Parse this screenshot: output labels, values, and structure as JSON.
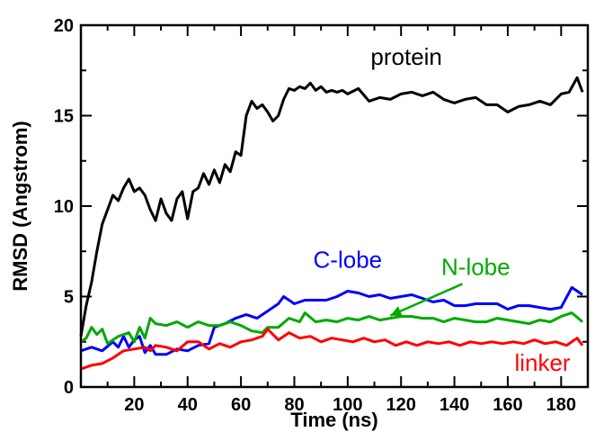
{
  "chart_data": {
    "type": "line",
    "title": "",
    "xlabel": "Time (ns)",
    "ylabel": "RMSD (Angstrom)",
    "xlim": [
      0,
      190
    ],
    "ylim": [
      0,
      20
    ],
    "x_ticks": [
      20,
      40,
      60,
      80,
      100,
      120,
      140,
      160,
      180
    ],
    "y_ticks": [
      0,
      5,
      10,
      15,
      20
    ],
    "grid": false,
    "legend": "none",
    "series": [
      {
        "name": "protein",
        "color": "#000000",
        "points": [
          [
            0,
            2.8
          ],
          [
            2,
            4.5
          ],
          [
            4,
            5.8
          ],
          [
            6,
            7.5
          ],
          [
            8,
            9.0
          ],
          [
            10,
            9.8
          ],
          [
            12,
            10.6
          ],
          [
            14,
            10.3
          ],
          [
            16,
            11.0
          ],
          [
            18,
            11.5
          ],
          [
            20,
            10.8
          ],
          [
            22,
            11.0
          ],
          [
            24,
            10.6
          ],
          [
            26,
            9.8
          ],
          [
            28,
            9.2
          ],
          [
            30,
            10.4
          ],
          [
            32,
            9.6
          ],
          [
            34,
            9.2
          ],
          [
            36,
            10.4
          ],
          [
            38,
            10.8
          ],
          [
            40,
            9.3
          ],
          [
            42,
            10.8
          ],
          [
            44,
            11.0
          ],
          [
            46,
            11.8
          ],
          [
            48,
            11.2
          ],
          [
            50,
            12.0
          ],
          [
            52,
            11.3
          ],
          [
            54,
            12.3
          ],
          [
            56,
            11.9
          ],
          [
            58,
            13.0
          ],
          [
            60,
            12.8
          ],
          [
            62,
            15.0
          ],
          [
            64,
            15.8
          ],
          [
            66,
            15.4
          ],
          [
            68,
            15.6
          ],
          [
            70,
            15.2
          ],
          [
            72,
            14.7
          ],
          [
            74,
            15.0
          ],
          [
            76,
            15.9
          ],
          [
            78,
            16.5
          ],
          [
            80,
            16.4
          ],
          [
            82,
            16.6
          ],
          [
            84,
            16.5
          ],
          [
            86,
            16.8
          ],
          [
            88,
            16.4
          ],
          [
            90,
            16.6
          ],
          [
            92,
            16.3
          ],
          [
            94,
            16.4
          ],
          [
            96,
            16.3
          ],
          [
            98,
            16.4
          ],
          [
            100,
            16.2
          ],
          [
            104,
            16.5
          ],
          [
            108,
            15.8
          ],
          [
            112,
            16.0
          ],
          [
            116,
            15.9
          ],
          [
            120,
            16.2
          ],
          [
            124,
            16.3
          ],
          [
            128,
            16.1
          ],
          [
            132,
            16.3
          ],
          [
            136,
            15.9
          ],
          [
            140,
            15.7
          ],
          [
            144,
            15.9
          ],
          [
            148,
            16.0
          ],
          [
            152,
            15.6
          ],
          [
            156,
            15.6
          ],
          [
            160,
            15.2
          ],
          [
            164,
            15.5
          ],
          [
            168,
            15.6
          ],
          [
            172,
            15.8
          ],
          [
            176,
            15.6
          ],
          [
            180,
            16.2
          ],
          [
            183,
            16.3
          ],
          [
            186,
            17.1
          ],
          [
            188,
            16.3
          ]
        ]
      },
      {
        "name": "C-lobe",
        "color": "#0000ff",
        "points": [
          [
            0,
            2.0
          ],
          [
            4,
            2.2
          ],
          [
            8,
            2.0
          ],
          [
            12,
            2.5
          ],
          [
            14,
            2.2
          ],
          [
            16,
            2.8
          ],
          [
            18,
            2.2
          ],
          [
            20,
            2.6
          ],
          [
            22,
            2.8
          ],
          [
            24,
            1.9
          ],
          [
            26,
            2.3
          ],
          [
            28,
            1.8
          ],
          [
            32,
            1.8
          ],
          [
            36,
            2.1
          ],
          [
            40,
            2.0
          ],
          [
            44,
            2.3
          ],
          [
            48,
            2.4
          ],
          [
            50,
            3.3
          ],
          [
            54,
            3.5
          ],
          [
            58,
            3.8
          ],
          [
            62,
            4.0
          ],
          [
            66,
            3.8
          ],
          [
            70,
            4.2
          ],
          [
            74,
            4.6
          ],
          [
            76,
            5.0
          ],
          [
            80,
            4.6
          ],
          [
            84,
            4.8
          ],
          [
            88,
            4.8
          ],
          [
            92,
            4.8
          ],
          [
            96,
            5.0
          ],
          [
            100,
            5.3
          ],
          [
            104,
            5.2
          ],
          [
            108,
            5.0
          ],
          [
            112,
            5.1
          ],
          [
            116,
            4.9
          ],
          [
            120,
            5.0
          ],
          [
            124,
            5.1
          ],
          [
            128,
            4.9
          ],
          [
            132,
            4.7
          ],
          [
            136,
            4.8
          ],
          [
            140,
            4.5
          ],
          [
            144,
            4.5
          ],
          [
            148,
            4.6
          ],
          [
            152,
            4.6
          ],
          [
            156,
            4.6
          ],
          [
            160,
            4.3
          ],
          [
            164,
            4.5
          ],
          [
            168,
            4.5
          ],
          [
            172,
            4.4
          ],
          [
            176,
            4.3
          ],
          [
            180,
            4.4
          ],
          [
            184,
            5.5
          ],
          [
            188,
            5.1
          ]
        ]
      },
      {
        "name": "N-lobe",
        "color": "#00aa00",
        "points": [
          [
            0,
            2.5
          ],
          [
            2,
            2.7
          ],
          [
            4,
            3.3
          ],
          [
            6,
            2.9
          ],
          [
            8,
            3.2
          ],
          [
            10,
            2.4
          ],
          [
            12,
            2.6
          ],
          [
            14,
            2.8
          ],
          [
            16,
            2.9
          ],
          [
            18,
            3.0
          ],
          [
            20,
            2.5
          ],
          [
            22,
            3.3
          ],
          [
            24,
            2.7
          ],
          [
            26,
            3.8
          ],
          [
            28,
            3.5
          ],
          [
            32,
            3.4
          ],
          [
            36,
            3.6
          ],
          [
            40,
            3.3
          ],
          [
            44,
            3.6
          ],
          [
            48,
            3.4
          ],
          [
            52,
            3.4
          ],
          [
            56,
            3.6
          ],
          [
            60,
            3.4
          ],
          [
            64,
            3.1
          ],
          [
            68,
            3.0
          ],
          [
            70,
            3.3
          ],
          [
            74,
            3.3
          ],
          [
            78,
            3.8
          ],
          [
            82,
            3.6
          ],
          [
            84,
            4.1
          ],
          [
            88,
            3.6
          ],
          [
            92,
            3.7
          ],
          [
            96,
            3.6
          ],
          [
            100,
            3.8
          ],
          [
            104,
            3.7
          ],
          [
            108,
            3.9
          ],
          [
            112,
            3.7
          ],
          [
            116,
            3.8
          ],
          [
            120,
            3.9
          ],
          [
            124,
            3.9
          ],
          [
            128,
            3.8
          ],
          [
            132,
            3.8
          ],
          [
            136,
            3.6
          ],
          [
            140,
            3.8
          ],
          [
            144,
            3.7
          ],
          [
            148,
            3.6
          ],
          [
            152,
            3.6
          ],
          [
            156,
            3.8
          ],
          [
            160,
            3.7
          ],
          [
            164,
            3.6
          ],
          [
            168,
            3.5
          ],
          [
            172,
            3.7
          ],
          [
            176,
            3.6
          ],
          [
            180,
            3.9
          ],
          [
            184,
            4.1
          ],
          [
            188,
            3.6
          ]
        ]
      },
      {
        "name": "linker",
        "color": "#ff0000",
        "points": [
          [
            0,
            1.0
          ],
          [
            4,
            1.2
          ],
          [
            8,
            1.3
          ],
          [
            12,
            1.6
          ],
          [
            16,
            2.0
          ],
          [
            20,
            2.1
          ],
          [
            24,
            2.2
          ],
          [
            26,
            2.0
          ],
          [
            28,
            2.3
          ],
          [
            32,
            2.2
          ],
          [
            36,
            2.0
          ],
          [
            40,
            2.5
          ],
          [
            44,
            2.5
          ],
          [
            48,
            2.1
          ],
          [
            52,
            2.4
          ],
          [
            56,
            2.2
          ],
          [
            60,
            2.5
          ],
          [
            64,
            2.6
          ],
          [
            68,
            2.8
          ],
          [
            70,
            3.2
          ],
          [
            74,
            2.6
          ],
          [
            78,
            3.0
          ],
          [
            82,
            2.7
          ],
          [
            86,
            2.8
          ],
          [
            90,
            2.5
          ],
          [
            94,
            2.7
          ],
          [
            98,
            2.6
          ],
          [
            102,
            2.5
          ],
          [
            106,
            2.7
          ],
          [
            110,
            2.5
          ],
          [
            114,
            2.6
          ],
          [
            118,
            2.3
          ],
          [
            122,
            2.5
          ],
          [
            126,
            2.3
          ],
          [
            130,
            2.5
          ],
          [
            134,
            2.4
          ],
          [
            138,
            2.5
          ],
          [
            142,
            2.3
          ],
          [
            146,
            2.5
          ],
          [
            150,
            2.4
          ],
          [
            154,
            2.5
          ],
          [
            158,
            2.4
          ],
          [
            162,
            2.5
          ],
          [
            166,
            2.4
          ],
          [
            170,
            2.6
          ],
          [
            174,
            2.4
          ],
          [
            178,
            2.5
          ],
          [
            182,
            2.3
          ],
          [
            186,
            2.7
          ],
          [
            188,
            2.3
          ]
        ]
      }
    ],
    "annotations": [
      {
        "text": "protein",
        "color": "#000000",
        "x": 122,
        "y": 17.8
      },
      {
        "text": "C-lobe",
        "color": "#0000ff",
        "x": 100,
        "y": 6.6
      },
      {
        "text": "N-lobe",
        "color": "#00aa00",
        "x": 148,
        "y": 6.2
      },
      {
        "text": "linker",
        "color": "#ff0000",
        "x": 173,
        "y": 0.9
      }
    ]
  }
}
